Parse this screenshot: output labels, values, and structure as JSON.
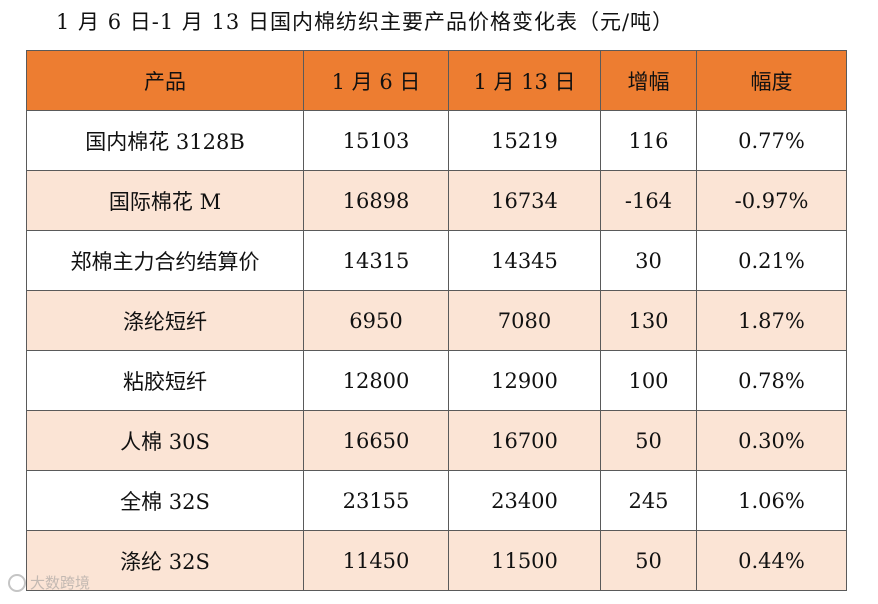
{
  "title": "1 月 6 日-1 月 13 日国内棉纺织主要产品价格变化表（元/吨）",
  "table": {
    "headers": [
      "产品",
      "1 月 6 日",
      "1 月 13 日",
      "增幅",
      "幅度"
    ],
    "rows": [
      [
        "国内棉花 3128B",
        "15103",
        "15219",
        "116",
        "0.77%"
      ],
      [
        "国际棉花 M",
        "16898",
        "16734",
        "-164",
        "-0.97%"
      ],
      [
        "郑棉主力合约结算价",
        "14315",
        "14345",
        "30",
        "0.21%"
      ],
      [
        "涤纶短纤",
        "6950",
        "7080",
        "130",
        "1.87%"
      ],
      [
        "粘胶短纤",
        "12800",
        "12900",
        "100",
        "0.78%"
      ],
      [
        "人棉 30S",
        "16650",
        "16700",
        "50",
        "0.30%"
      ],
      [
        "全棉 32S",
        "23155",
        "23400",
        "245",
        "1.06%"
      ],
      [
        "涤纶 32S",
        "11450",
        "11500",
        "50",
        "0.44%"
      ]
    ]
  },
  "watermark": "大数跨境",
  "colors": {
    "header_bg": "#ed7d31",
    "stripe_bg": "#fbe4d5",
    "border": "#5a5a5a"
  }
}
